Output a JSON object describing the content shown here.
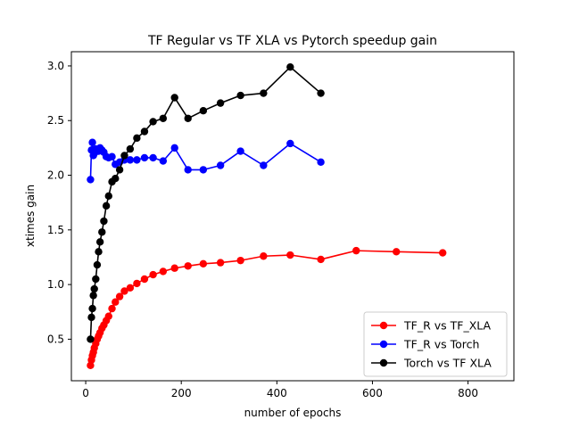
{
  "chart_data": {
    "type": "line",
    "title": "TF Regular vs TF XLA vs Pytorch speedup gain",
    "xlabel": "number of epochs",
    "ylabel": "xtimes gain",
    "xlim": [
      -30,
      896
    ],
    "ylim": [
      0.12,
      3.13
    ],
    "xticks": [
      0,
      200,
      400,
      600,
      800
    ],
    "yticks": [
      0.5,
      1.0,
      1.5,
      2.0,
      2.5,
      3.0
    ],
    "xtick_labels": [
      "0",
      "200",
      "400",
      "600",
      "800"
    ],
    "ytick_labels": [
      "0.5",
      "1.0",
      "1.5",
      "2.0",
      "2.5",
      "3.0"
    ],
    "grid": false,
    "legend_position": "lower-right",
    "series": [
      {
        "name": "TF_R vs TF_XLA",
        "color": "#ff0000",
        "points": [
          [
            10,
            0.26
          ],
          [
            12,
            0.31
          ],
          [
            14,
            0.35
          ],
          [
            16,
            0.38
          ],
          [
            18,
            0.42
          ],
          [
            21,
            0.46
          ],
          [
            24,
            0.5
          ],
          [
            27,
            0.53
          ],
          [
            30,
            0.56
          ],
          [
            34,
            0.6
          ],
          [
            38,
            0.63
          ],
          [
            43,
            0.67
          ],
          [
            48,
            0.71
          ],
          [
            55,
            0.78
          ],
          [
            62,
            0.84
          ],
          [
            71,
            0.89
          ],
          [
            81,
            0.94
          ],
          [
            93,
            0.97
          ],
          [
            107,
            1.01
          ],
          [
            123,
            1.05
          ],
          [
            141,
            1.09
          ],
          [
            162,
            1.12
          ],
          [
            186,
            1.15
          ],
          [
            214,
            1.17
          ],
          [
            246,
            1.19
          ],
          [
            282,
            1.2
          ],
          [
            324,
            1.22
          ],
          [
            372,
            1.26
          ],
          [
            428,
            1.27
          ],
          [
            492,
            1.23
          ],
          [
            566,
            1.31
          ],
          [
            650,
            1.3
          ],
          [
            747,
            1.29
          ]
        ]
      },
      {
        "name": "TF_R vs Torch",
        "color": "#0000ff",
        "points": [
          [
            10,
            1.96
          ],
          [
            12,
            2.23
          ],
          [
            14,
            2.3
          ],
          [
            16,
            2.18
          ],
          [
            18,
            2.2
          ],
          [
            21,
            2.24
          ],
          [
            24,
            2.22
          ],
          [
            27,
            2.22
          ],
          [
            30,
            2.25
          ],
          [
            34,
            2.23
          ],
          [
            38,
            2.21
          ],
          [
            43,
            2.17
          ],
          [
            48,
            2.16
          ],
          [
            55,
            2.17
          ],
          [
            62,
            2.1
          ],
          [
            71,
            2.12
          ],
          [
            81,
            2.14
          ],
          [
            93,
            2.14
          ],
          [
            107,
            2.14
          ],
          [
            123,
            2.16
          ],
          [
            141,
            2.16
          ],
          [
            162,
            2.13
          ],
          [
            186,
            2.25
          ],
          [
            214,
            2.05
          ],
          [
            246,
            2.05
          ],
          [
            282,
            2.09
          ],
          [
            324,
            2.22
          ],
          [
            372,
            2.09
          ],
          [
            428,
            2.29
          ],
          [
            492,
            2.12
          ]
        ]
      },
      {
        "name": "Torch vs TF XLA",
        "color": "#000000",
        "points": [
          [
            10,
            0.5
          ],
          [
            12,
            0.7
          ],
          [
            14,
            0.78
          ],
          [
            16,
            0.9
          ],
          [
            18,
            0.96
          ],
          [
            21,
            1.05
          ],
          [
            24,
            1.18
          ],
          [
            27,
            1.3
          ],
          [
            30,
            1.39
          ],
          [
            34,
            1.48
          ],
          [
            38,
            1.58
          ],
          [
            43,
            1.72
          ],
          [
            48,
            1.81
          ],
          [
            55,
            1.94
          ],
          [
            62,
            1.97
          ],
          [
            71,
            2.05
          ],
          [
            81,
            2.18
          ],
          [
            93,
            2.24
          ],
          [
            107,
            2.34
          ],
          [
            123,
            2.4
          ],
          [
            141,
            2.49
          ],
          [
            162,
            2.52
          ],
          [
            186,
            2.71
          ],
          [
            214,
            2.52
          ],
          [
            246,
            2.59
          ],
          [
            282,
            2.66
          ],
          [
            324,
            2.73
          ],
          [
            372,
            2.75
          ],
          [
            428,
            2.99
          ],
          [
            492,
            2.75
          ]
        ]
      }
    ]
  }
}
